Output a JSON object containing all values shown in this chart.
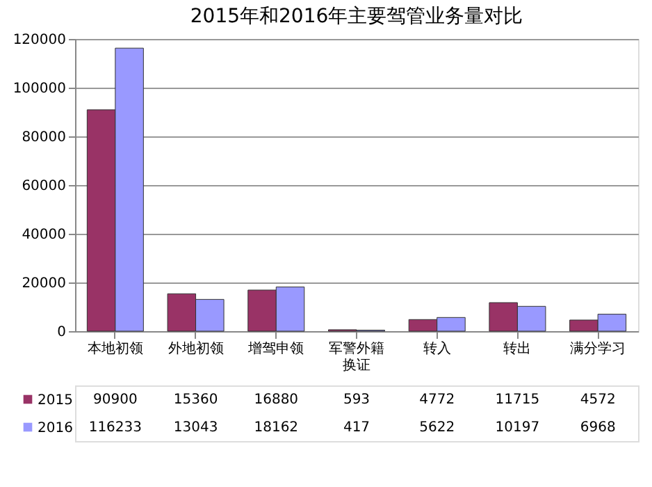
{
  "chart_data": {
    "type": "bar",
    "title": "2015年和2016年主要驾管业务量对比",
    "categories": [
      "本地初领",
      "外地初领",
      "增驾申领",
      "军警外籍换证",
      "转入",
      "转出",
      "满分学习"
    ],
    "series": [
      {
        "name": "2015",
        "color": "#993366",
        "values": [
          90900,
          15360,
          16880,
          593,
          4772,
          11715,
          4572
        ]
      },
      {
        "name": "2016",
        "color": "#9999ff",
        "values": [
          116233,
          13043,
          18162,
          417,
          5622,
          10197,
          6968
        ]
      }
    ],
    "ylim": [
      0,
      120000
    ],
    "yticks": [
      0,
      20000,
      40000,
      60000,
      80000,
      100000,
      120000
    ],
    "grid": "y",
    "data_labels": true,
    "legend": "bottom left"
  }
}
